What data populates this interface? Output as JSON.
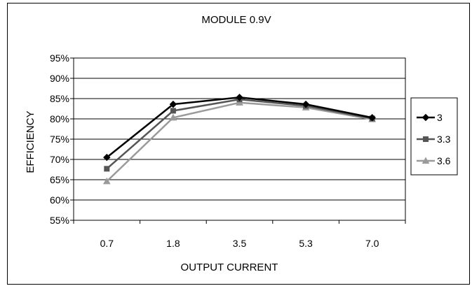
{
  "chart_data": {
    "type": "line",
    "title": "MODULE 0.9V",
    "xlabel": "OUTPUT CURRENT",
    "ylabel": "EFFICIENCY",
    "categories": [
      "0.7",
      "1.8",
      "3.5",
      "5.3",
      "7.0"
    ],
    "y_ticks": [
      "55%",
      "60%",
      "65%",
      "70%",
      "75%",
      "80%",
      "85%",
      "90%",
      "95%"
    ],
    "ylim": [
      55,
      95
    ],
    "grid": "horizontal",
    "legend_position": "right",
    "series": [
      {
        "name": "3",
        "values": [
          70.5,
          83.6,
          85.3,
          83.6,
          80.3
        ],
        "color": "#000000",
        "marker": "diamond"
      },
      {
        "name": "3.3",
        "values": [
          67.7,
          82.0,
          84.8,
          83.2,
          80.1
        ],
        "color": "#555555",
        "marker": "square"
      },
      {
        "name": "3.6",
        "values": [
          64.6,
          80.3,
          84.0,
          82.8,
          79.9
        ],
        "color": "#9a9a9a",
        "marker": "triangle"
      }
    ]
  }
}
